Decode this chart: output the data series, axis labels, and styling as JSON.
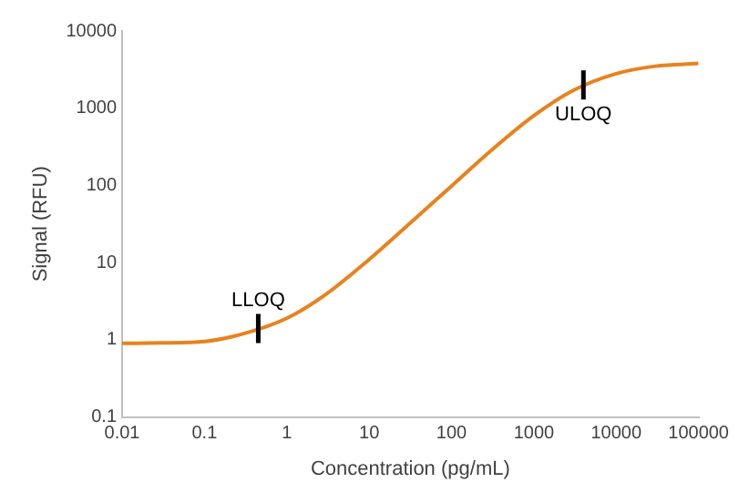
{
  "chart_data": {
    "type": "line",
    "xlabel": "Concentration (pg/mL)",
    "ylabel": "Signal (RFU)",
    "x": [
      0.01,
      0.03,
      0.1,
      0.3,
      1,
      3,
      10,
      30,
      100,
      300,
      1000,
      3000,
      10000,
      30000,
      100000
    ],
    "series": [
      {
        "color": "#e8821e",
        "values": [
          0.9,
          0.91,
          0.95,
          1.2,
          1.9,
          3.9,
          11,
          31,
          98,
          280,
          800,
          1700,
          2800,
          3500,
          3800
        ]
      }
    ],
    "log": "xy",
    "xlim": [
      0.01,
      100000
    ],
    "xticks": [
      0.01,
      0.1,
      1,
      10,
      100,
      1000,
      10000,
      100000
    ],
    "ylim": [
      0.1,
      10000
    ],
    "yticks": [
      0.1,
      1,
      10,
      100,
      1000,
      10000
    ],
    "grid": false,
    "legend": false,
    "marker": "none",
    "line_style": "solid",
    "annotations": [
      {
        "text": "LLOQ",
        "x": 0.45,
        "y": 1.4
      },
      {
        "text": "ULOQ",
        "x": 4000,
        "y": 2000
      }
    ]
  }
}
